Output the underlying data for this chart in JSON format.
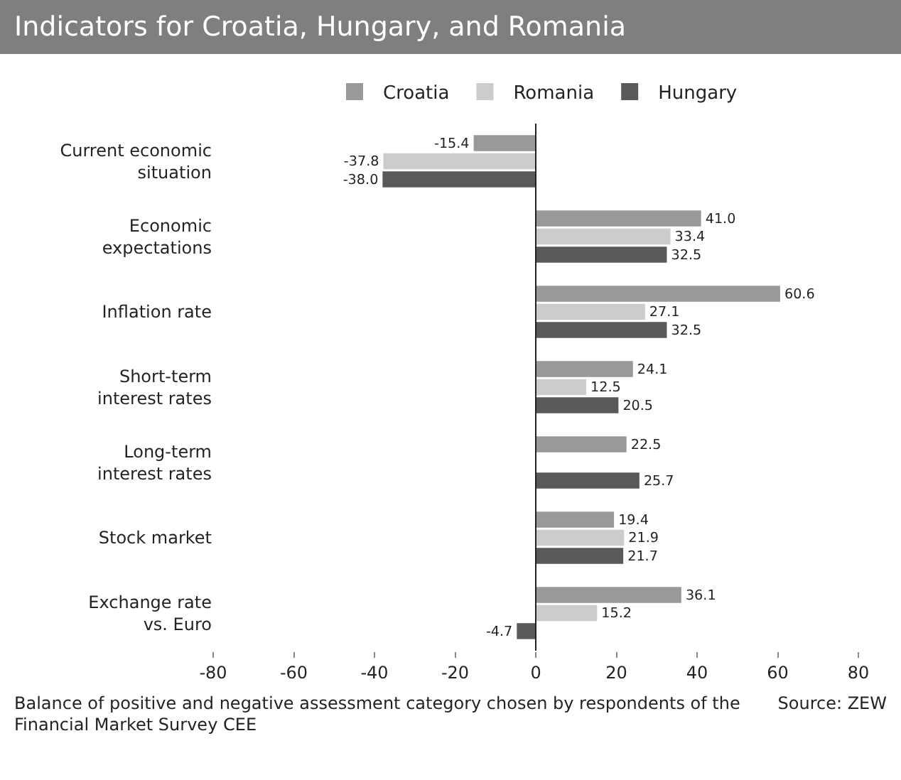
{
  "chart_data": {
    "type": "bar",
    "orientation": "horizontal",
    "title": "Indicators for Croatia, Hungary, and Romania",
    "categories": [
      "Current economic situation",
      "Economic expectations",
      "Inflation rate",
      "Short-term interest rates",
      "Long-term interest rates",
      "Stock market",
      "Exchange rate vs. Euro"
    ],
    "series": [
      {
        "name": "Croatia",
        "color": "#999999",
        "values": [
          -15.4,
          41.0,
          60.6,
          24.1,
          22.5,
          19.4,
          36.1
        ],
        "value_labels": [
          "-15.4",
          "41.0",
          "60.6",
          "24.1",
          "22.5",
          "19.4",
          "36.1"
        ]
      },
      {
        "name": "Romania",
        "color": "#cccccc",
        "values": [
          -37.8,
          33.4,
          27.1,
          12.5,
          null,
          21.9,
          15.2
        ],
        "value_labels": [
          "-37.8",
          "33.4",
          "27.1",
          "12.5",
          null,
          "21.9",
          "15.2"
        ]
      },
      {
        "name": "Hungary",
        "color": "#595959",
        "values": [
          -38.0,
          32.5,
          32.5,
          20.5,
          25.7,
          21.7,
          -4.7
        ],
        "value_labels": [
          "-38.0",
          "32.5",
          "32.5",
          "20.5",
          "25.7",
          "21.7",
          "-4.7"
        ]
      }
    ],
    "xlim": [
      -80,
      80
    ],
    "xticks": [
      -80,
      -60,
      -40,
      -20,
      0,
      20,
      40,
      60,
      80
    ],
    "grid": false,
    "ref_lines": [
      {
        "axis": "x",
        "value": 0,
        "color": "#222222"
      }
    ],
    "legend": "top",
    "annotations": [
      "Balance of positive and negative assessment category chosen by respondents of the Financial Market Survey CEE",
      "Source: ZEW"
    ]
  }
}
